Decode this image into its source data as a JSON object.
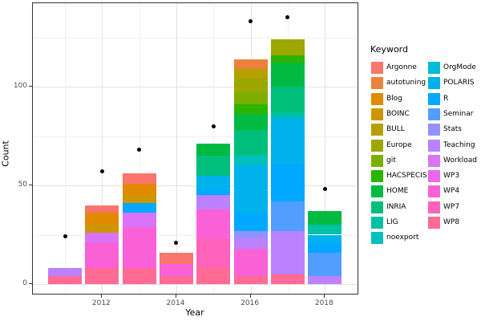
{
  "figure": {
    "ylabel": "Count",
    "xlabel": "Year",
    "legend_title": "Keyword"
  },
  "chart_data": {
    "type": "bar",
    "subtype": "stacked-bars-with-points",
    "title": "",
    "xlabel": "Year",
    "ylabel": "Count",
    "legend_title": "Keyword",
    "legend_position": "right",
    "grid": true,
    "ylim": [
      0,
      142
    ],
    "y_ticks": [
      0,
      50,
      100
    ],
    "y_tick_labels": [
      "0",
      "50",
      "100"
    ],
    "y_minor_gridlines": [
      25,
      75,
      125
    ],
    "x_tick_years": [
      2012,
      2014,
      2016,
      2018
    ],
    "x_tick_labels": [
      "2012",
      "2014",
      "2016",
      "2018"
    ],
    "x_gridline_years": [
      2011,
      2012,
      2013,
      2014,
      2015,
      2016,
      2017,
      2018
    ],
    "keywords": [
      {
        "label": "Argonne",
        "color": "#F8766D"
      },
      {
        "label": "autotuning",
        "color": "#EC8239"
      },
      {
        "label": "Blog",
        "color": "#E18A00"
      },
      {
        "label": "BOINC",
        "color": "#CD9600"
      },
      {
        "label": "BULL",
        "color": "#B79F00"
      },
      {
        "label": "Europe",
        "color": "#9CA700"
      },
      {
        "label": "git",
        "color": "#7CAE00"
      },
      {
        "label": "HACSPECIS",
        "color": "#2BB400"
      },
      {
        "label": "HOME",
        "color": "#00BA42"
      },
      {
        "label": "INRIA",
        "color": "#00BF7D"
      },
      {
        "label": "LIG",
        "color": "#00C1A2"
      },
      {
        "label": "noexport",
        "color": "#00C0BF"
      },
      {
        "label": "OrgMode",
        "color": "#00BCD8"
      },
      {
        "label": "POLARIS",
        "color": "#00B3EC"
      },
      {
        "label": "R",
        "color": "#00A9FF"
      },
      {
        "label": "Seminar",
        "color": "#529EFF"
      },
      {
        "label": "Stats",
        "color": "#9491FF"
      },
      {
        "label": "Teaching",
        "color": "#BB81FF"
      },
      {
        "label": "Workload",
        "color": "#DA73F8"
      },
      {
        "label": "WP3",
        "color": "#EC67EF"
      },
      {
        "label": "WP4",
        "color": "#FB61D7"
      },
      {
        "label": "WP7",
        "color": "#FF62BB"
      },
      {
        "label": "WP8",
        "color": "#FF6B94"
      }
    ],
    "bars": [
      {
        "year": 2011,
        "total": 8,
        "segments": [
          {
            "keyword": "WP8",
            "value": 4
          },
          {
            "keyword": "Teaching",
            "value": 4
          }
        ]
      },
      {
        "year": 2012,
        "total": 40,
        "segments": [
          {
            "keyword": "WP8",
            "value": 8
          },
          {
            "keyword": "WP4",
            "value": 13
          },
          {
            "keyword": "Workload",
            "value": 5
          },
          {
            "keyword": "BOINC",
            "value": 4
          },
          {
            "keyword": "Blog",
            "value": 6
          },
          {
            "keyword": "Argonne",
            "value": 4
          }
        ]
      },
      {
        "year": 2013,
        "total": 56,
        "segments": [
          {
            "keyword": "WP8",
            "value": 8
          },
          {
            "keyword": "WP4",
            "value": 21
          },
          {
            "keyword": "Workload",
            "value": 7
          },
          {
            "keyword": "R",
            "value": 5
          },
          {
            "keyword": "BOINC",
            "value": 4
          },
          {
            "keyword": "Blog",
            "value": 6
          },
          {
            "keyword": "Argonne",
            "value": 5
          }
        ]
      },
      {
        "year": 2014,
        "total": 16,
        "segments": [
          {
            "keyword": "WP8",
            "value": 4
          },
          {
            "keyword": "WP4",
            "value": 6
          },
          {
            "keyword": "Argonne",
            "value": 6
          }
        ]
      },
      {
        "year": 2015,
        "total": 71,
        "segments": [
          {
            "keyword": "WP8",
            "value": 8
          },
          {
            "keyword": "WP7",
            "value": 15
          },
          {
            "keyword": "WP4",
            "value": 15
          },
          {
            "keyword": "Teaching",
            "value": 7
          },
          {
            "keyword": "R",
            "value": 3
          },
          {
            "keyword": "POLARIS",
            "value": 7
          },
          {
            "keyword": "INRIA",
            "value": 10
          },
          {
            "keyword": "HOME",
            "value": 6
          }
        ]
      },
      {
        "year": 2016,
        "total": 114,
        "segments": [
          {
            "keyword": "WP8",
            "value": 4
          },
          {
            "keyword": "WP4",
            "value": 14
          },
          {
            "keyword": "Teaching",
            "value": 5
          },
          {
            "keyword": "Stats",
            "value": 4
          },
          {
            "keyword": "R",
            "value": 9
          },
          {
            "keyword": "POLARIS",
            "value": 24
          },
          {
            "keyword": "noexport",
            "value": 5
          },
          {
            "keyword": "INRIA",
            "value": 13
          },
          {
            "keyword": "HOME",
            "value": 8
          },
          {
            "keyword": "HACSPECIS",
            "value": 5
          },
          {
            "keyword": "git",
            "value": 6
          },
          {
            "keyword": "Europe",
            "value": 7
          },
          {
            "keyword": "BULL",
            "value": 5
          },
          {
            "keyword": "autotuning",
            "value": 5
          }
        ]
      },
      {
        "year": 2017,
        "total": 124,
        "segments": [
          {
            "keyword": "WP8",
            "value": 5
          },
          {
            "keyword": "Teaching",
            "value": 22
          },
          {
            "keyword": "Seminar",
            "value": 15
          },
          {
            "keyword": "R",
            "value": 19
          },
          {
            "keyword": "POLARIS",
            "value": 23
          },
          {
            "keyword": "LIG",
            "value": 3
          },
          {
            "keyword": "INRIA",
            "value": 13
          },
          {
            "keyword": "HOME",
            "value": 12
          },
          {
            "keyword": "HACSPECIS",
            "value": 4
          },
          {
            "keyword": "Europe",
            "value": 8
          }
        ]
      },
      {
        "year": 2018,
        "total": 37,
        "segments": [
          {
            "keyword": "Teaching",
            "value": 4
          },
          {
            "keyword": "Seminar",
            "value": 12
          },
          {
            "keyword": "R",
            "value": 5
          },
          {
            "keyword": "POLARIS",
            "value": 4
          },
          {
            "keyword": "LIG",
            "value": 5
          },
          {
            "keyword": "HOME",
            "value": 7
          }
        ]
      }
    ],
    "points": [
      {
        "year": 2011,
        "value": 24
      },
      {
        "year": 2012,
        "value": 57
      },
      {
        "year": 2013,
        "value": 68
      },
      {
        "year": 2014,
        "value": 21
      },
      {
        "year": 2015,
        "value": 80
      },
      {
        "year": 2016,
        "value": 133
      },
      {
        "year": 2017,
        "value": 135
      },
      {
        "year": 2018,
        "value": 48
      }
    ]
  }
}
